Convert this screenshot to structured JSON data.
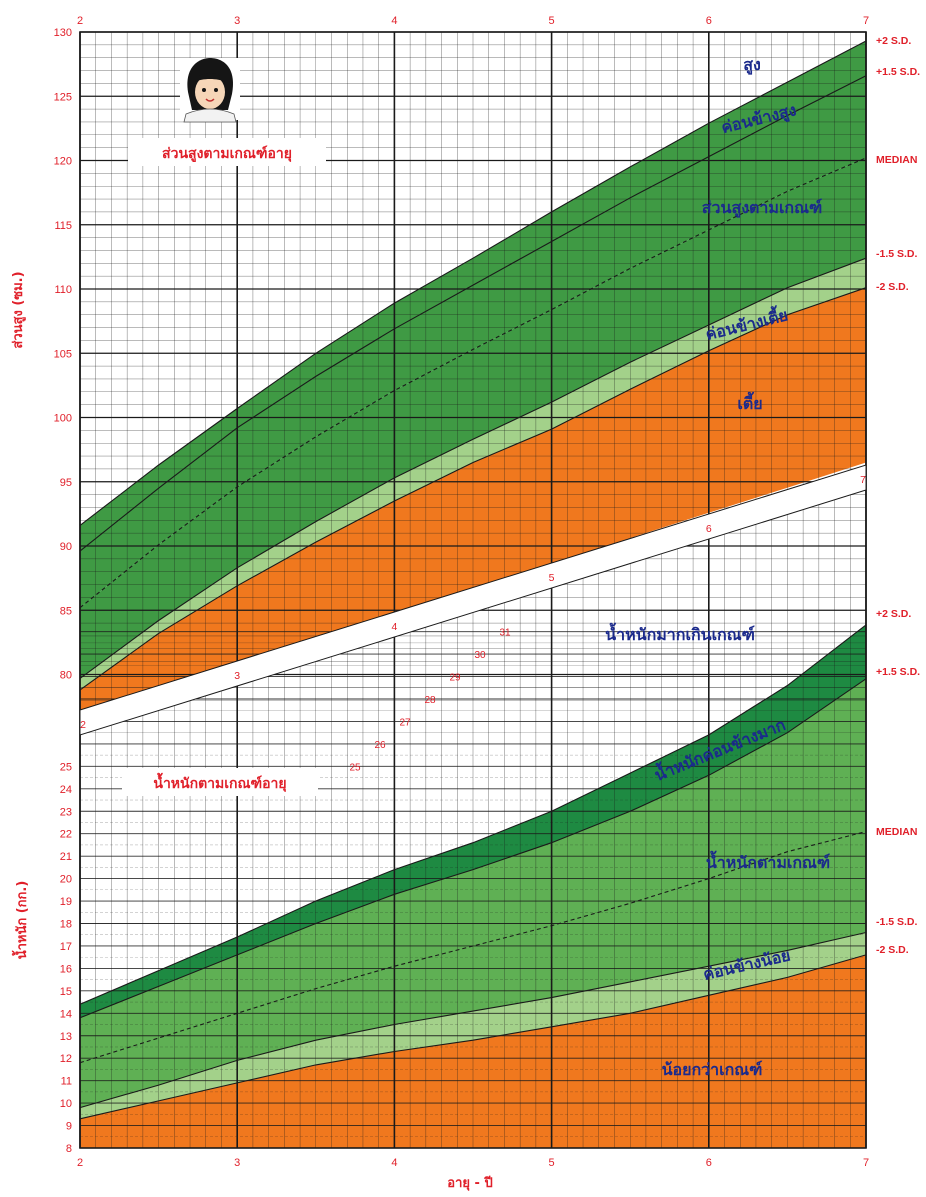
{
  "colors": {
    "tall": "#3f9a44",
    "normal": "#5fb054",
    "light": "#a3d18a",
    "dark": "#1e8a42",
    "short": "#f0781e",
    "grid": "#1a1a1a",
    "label": "#e0202a",
    "zone_text": "#1b2a8c"
  },
  "icon": "girl-face-illustration",
  "chart_data": [
    {
      "type": "area",
      "title": "ส่วนสูงตามเกณฑ์อายุ",
      "ylabel": "ส่วนสูง (ซม.)",
      "xlabel": "อายุ - ปี",
      "x_unit": "years",
      "xlim": [
        2,
        7
      ],
      "ylim": [
        78,
        130
      ],
      "x_ticks": [
        "2",
        "3",
        "4",
        "5",
        "6",
        "7"
      ],
      "y_ticks": [
        "80",
        "85",
        "90",
        "95",
        "100",
        "105",
        "110",
        "115",
        "120",
        "125",
        "130"
      ],
      "x": [
        2,
        2.5,
        3,
        3.5,
        4,
        4.5,
        5,
        5.5,
        6,
        6.5,
        7
      ],
      "series": [
        {
          "name": "+2 S.D.",
          "values": [
            91.6,
            96.3,
            100.7,
            105,
            108.9,
            112.4,
            116,
            119.5,
            122.9,
            126.1,
            129.3
          ]
        },
        {
          "name": "+1.5 S.D.",
          "values": [
            89.6,
            94.5,
            99.2,
            103.2,
            106.9,
            110.3,
            113.7,
            117.1,
            120.3,
            123.5,
            126.6
          ]
        },
        {
          "name": "MEDIAN",
          "values": [
            85.2,
            90.1,
            94.6,
            98.5,
            102.1,
            105.3,
            108.4,
            111.6,
            114.6,
            117.6,
            120.2
          ]
        },
        {
          "name": "-1.5 S.D.",
          "values": [
            79.7,
            84.2,
            88.3,
            91.9,
            95.3,
            98.3,
            101.2,
            104.3,
            107.2,
            110.1,
            112.4
          ]
        },
        {
          "name": "-2 S.D.",
          "values": [
            78.8,
            83.2,
            86.9,
            90.3,
            93.5,
            96.5,
            99.1,
            102.2,
            105.2,
            108,
            110.1
          ]
        }
      ],
      "zones": [
        "สูง",
        "ค่อนข้างสูง",
        "ส่วนสูงตามเกณฑ์",
        "ค่อนข้างเตี้ย",
        "เตี้ย"
      ]
    },
    {
      "type": "area",
      "title": "น้ำหนักตามเกณฑ์อายุ",
      "ylabel": "น้ำหนัก (กก.)",
      "xlabel": "อายุ - ปี",
      "x_unit": "years",
      "xlim": [
        2,
        7
      ],
      "ylim": [
        8,
        31
      ],
      "x_ticks": [
        "2",
        "3",
        "4",
        "5",
        "6",
        "7"
      ],
      "y_ticks": [
        "8",
        "9",
        "10",
        "11",
        "12",
        "13",
        "14",
        "15",
        "16",
        "17",
        "18",
        "19",
        "20",
        "21",
        "22",
        "23",
        "24",
        "25"
      ],
      "x": [
        2,
        2.5,
        3,
        3.5,
        4,
        4.5,
        5,
        5.5,
        6,
        6.5,
        7
      ],
      "series": [
        {
          "name": "+2 S.D.",
          "values": [
            14.4,
            15.9,
            17.4,
            19,
            20.4,
            21.6,
            23,
            24.7,
            26.4,
            28.6,
            31.3
          ]
        },
        {
          "name": "+1.5 S.D.",
          "values": [
            13.8,
            15.2,
            16.6,
            18,
            19.3,
            20.4,
            21.6,
            23,
            24.6,
            26.5,
            28.9
          ]
        },
        {
          "name": "MEDIAN",
          "values": [
            11.8,
            12.9,
            14,
            15.1,
            16.1,
            17,
            17.9,
            18.9,
            20,
            21.2,
            22.1
          ]
        },
        {
          "name": "-1.5 S.D.",
          "values": [
            9.8,
            10.8,
            11.9,
            12.8,
            13.5,
            14.1,
            14.7,
            15.4,
            16.1,
            16.8,
            17.6
          ]
        },
        {
          "name": "-2 S.D.",
          "values": [
            9.3,
            10.1,
            10.9,
            11.7,
            12.3,
            12.8,
            13.4,
            14,
            14.8,
            15.6,
            16.6
          ]
        }
      ],
      "zones": [
        "น้ำหนักมากเกินเกณฑ์",
        "น้ำหนักค่อนข้างมาก",
        "น้ำหนักตามเกณฑ์",
        "ค่อนข้างน้อย",
        "น้อยกว่าเกณฑ์"
      ],
      "extra_y_labels": [
        "25",
        "26",
        "27",
        "28",
        "29",
        "30",
        "31"
      ]
    }
  ],
  "top_age_ticks": [
    "2",
    "3",
    "4",
    "5",
    "6",
    "7"
  ],
  "band_age_labels": [
    "2",
    "3",
    "4",
    "5",
    "6",
    "7"
  ],
  "sd_labels": [
    "+2 S.D.",
    "+1.5 S.D.",
    "MEDIAN",
    "-1.5 S.D.",
    "-2 S.D."
  ]
}
